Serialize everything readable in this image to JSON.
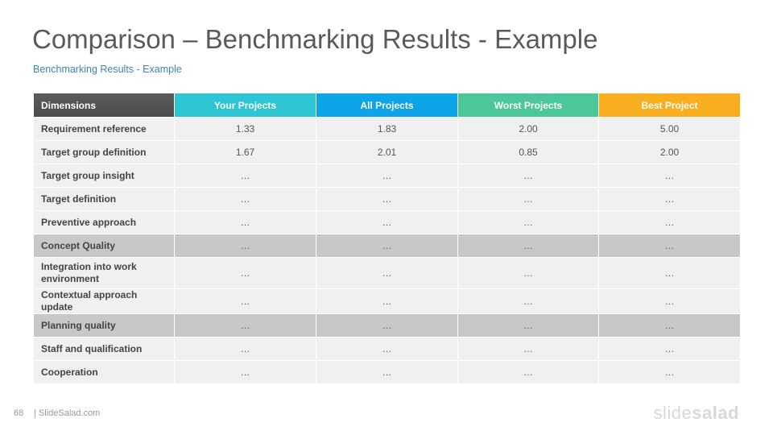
{
  "title": "Comparison – Benchmarking Results - Example",
  "subtitle": "Benchmarking  Results - Example",
  "table": {
    "headers": [
      {
        "label": "Dimensions",
        "color": "#555555"
      },
      {
        "label": "Your Projects",
        "color": "#2ec5d3"
      },
      {
        "label": "All Projects",
        "color": "#0ea4e8"
      },
      {
        "label": "Worst Projects",
        "color": "#4cc79a"
      },
      {
        "label": "Best Project",
        "color": "#f8ae1f"
      }
    ],
    "rows": [
      {
        "label": "Requirement reference",
        "values": [
          "1.33",
          "1.83",
          "2.00",
          "5.00"
        ],
        "highlight": false
      },
      {
        "label": "Target group definition",
        "values": [
          "1.67",
          "2.01",
          "0.85",
          "2.00"
        ],
        "highlight": false
      },
      {
        "label": "Target group insight",
        "values": [
          "…",
          "…",
          "…",
          "…"
        ],
        "highlight": false
      },
      {
        "label": "Target definition",
        "values": [
          "…",
          "…",
          "…",
          "…"
        ],
        "highlight": false
      },
      {
        "label": "Preventive approach",
        "values": [
          "…",
          "…",
          "…",
          "…"
        ],
        "highlight": false
      },
      {
        "label": "Concept Quality",
        "values": [
          "…",
          "…",
          "…",
          "…"
        ],
        "highlight": true
      },
      {
        "label": "Integration into work environment",
        "values": [
          "…",
          "…",
          "…",
          "…"
        ],
        "highlight": false
      },
      {
        "label": "Contextual approach update",
        "values": [
          "…",
          "…",
          "…",
          "…"
        ],
        "highlight": false
      },
      {
        "label": "Planning quality",
        "values": [
          "…",
          "…",
          "…",
          "…"
        ],
        "highlight": true
      },
      {
        "label": "Staff and qualification",
        "values": [
          "…",
          "…",
          "…",
          "…"
        ],
        "highlight": false
      },
      {
        "label": "Cooperation",
        "values": [
          "…",
          "…",
          "…",
          "…"
        ],
        "highlight": false
      }
    ]
  },
  "footer": {
    "page_number": "68",
    "site": "| SlideSalad.com",
    "logo_light": "slide",
    "logo_bold": "salad"
  }
}
